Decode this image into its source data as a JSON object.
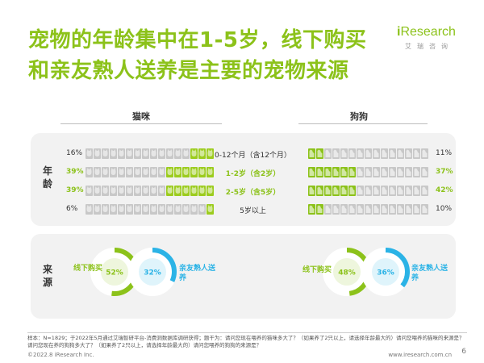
{
  "title": "宠物的年龄集中在1-5岁，线下购买和亲友熟人送养是主要的宠物来源",
  "logo": {
    "name_prefix": "i",
    "name_rest": "Research",
    "sub": "艾瑞咨询"
  },
  "colors": {
    "cat_green": "#9ccc1e",
    "dog_green": "#8cc21a",
    "blue": "#2bb3e6",
    "gray": "#c8c8c8"
  },
  "headers": {
    "cat": "猫咪",
    "dog": "狗狗"
  },
  "sections": {
    "age": "年龄",
    "source": "来源"
  },
  "chart_data": [
    {
      "type": "bar",
      "title": "年龄",
      "categories": [
        "0-12个月（含12个月）",
        "1-2岁（含2岁）",
        "2-5岁（含5岁）",
        "5岁以上"
      ],
      "series": [
        {
          "name": "猫咪",
          "values": [
            16,
            39,
            39,
            6
          ],
          "labels": [
            "16%",
            "39%",
            "39%",
            "6%"
          ]
        },
        {
          "name": "狗狗",
          "values": [
            11,
            37,
            42,
            10
          ],
          "labels": [
            "11%",
            "37%",
            "42%",
            "10%"
          ]
        }
      ],
      "highlight_rows": [
        1,
        2
      ]
    },
    {
      "type": "pie",
      "title": "来源",
      "series": [
        {
          "name": "猫咪",
          "slices": [
            {
              "label": "线下购买",
              "value": 52,
              "text": "52%"
            },
            {
              "label": "亲友熟人送养",
              "value": 32,
              "text": "32%"
            }
          ]
        },
        {
          "name": "狗狗",
          "slices": [
            {
              "label": "线下购买",
              "value": 48,
              "text": "48%"
            },
            {
              "label": "亲友熟人送养",
              "value": 36,
              "text": "36%"
            }
          ]
        }
      ]
    }
  ],
  "ann": {
    "buy": "线下购买",
    "gift": "亲友熟人送养"
  },
  "footnote": "样本：N=1829；于2022年5月通过艾瑞智研平台-消费洞数据库调研获得；题干为：请问您现在喂养的猫咪多大了？（如果养了2只以上，请选择年龄最大的）请问您喂养的猫咪的来源是？请问您现在养的狗狗多大了？（如果养了2只以上，请选择年龄最大的）请问您喂养的狗狗的来源是？",
  "footer": {
    "copyright": "©2022.8 iResearch Inc.",
    "url": "www.iresearch.com.cn",
    "page": "6"
  }
}
